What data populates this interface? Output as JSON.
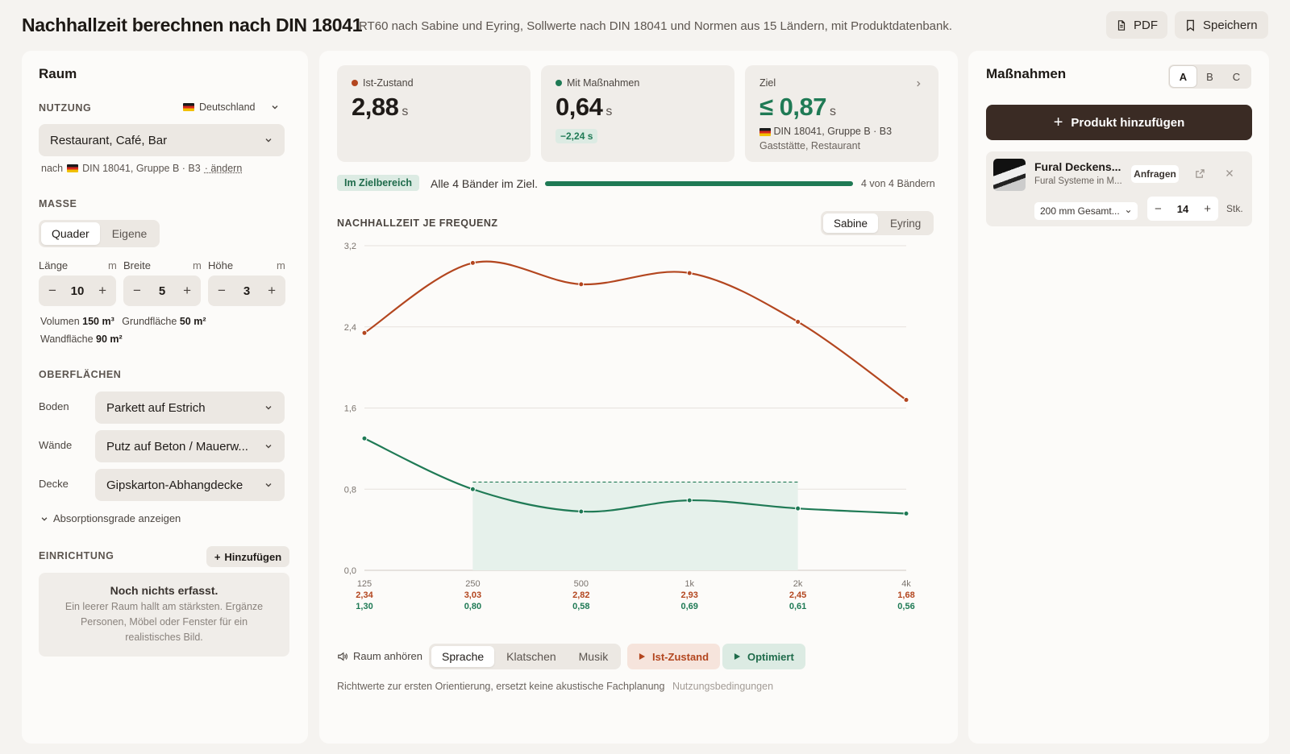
{
  "header": {
    "title": "Nachhallzeit berechnen nach DIN 18041",
    "subtitle": "RT60 nach Sabine und Eyring, Sollwerte nach DIN 18041 und Normen aus 15 Ländern, mit Produktdatenbank.",
    "pdf_label": "PDF",
    "save_label": "Speichern"
  },
  "raum": {
    "title": "Raum",
    "nutzung_label": "NUTZUNG",
    "country": "Deutschland",
    "usage_value": "Restaurant, Café, Bar",
    "norm_prefix": "nach",
    "norm_text": "DIN 18041, Gruppe B · B3",
    "norm_change": "· ändern",
    "masse_label": "MASSE",
    "shape_options": [
      "Quader",
      "Eigene"
    ],
    "shape_active": "Quader",
    "dims": [
      {
        "label": "Länge",
        "unit": "m",
        "value": "10"
      },
      {
        "label": "Breite",
        "unit": "m",
        "value": "5"
      },
      {
        "label": "Höhe",
        "unit": "m",
        "value": "3"
      }
    ],
    "volumen_label": "Volumen",
    "volumen_value": "150 m³",
    "grundflaeche_label": "Grundfläche",
    "grundflaeche_value": "50 m²",
    "wandflaeche_label": "Wandfläche",
    "wandflaeche_value": "90 m²",
    "oberflaechen_label": "OBERFLÄCHEN",
    "surfaces": [
      {
        "label": "Boden",
        "value": "Parkett auf Estrich"
      },
      {
        "label": "Wände",
        "value": "Putz auf Beton / Mauerw..."
      },
      {
        "label": "Decke",
        "value": "Gipskarton-Abhangdecke"
      }
    ],
    "absorption_toggle": "Absorptionsgrade anzeigen",
    "einrichtung_label": "EINRICHTUNG",
    "add_label": "Hinzufügen",
    "empty_title": "Noch nichts erfasst.",
    "empty_text": "Ein leerer Raum hallt am stärksten. Ergänze Personen, Möbel oder Fenster für ein realistisches Bild."
  },
  "kpis": {
    "ist": {
      "label": "Ist-Zustand",
      "value": "2,88",
      "unit": "s",
      "color": "#b3461f"
    },
    "mit": {
      "label": "Mit Maßnahmen",
      "value": "0,64",
      "unit": "s",
      "delta": "−2,24 s",
      "color": "#1f7a55"
    },
    "ziel": {
      "label": "Ziel",
      "value": "≤ 0,87",
      "unit": "s",
      "norm": "DIN 18041, Gruppe B · B3",
      "norm_sub": "Gaststätte, Restaurant"
    }
  },
  "status": {
    "badge": "Im Zielbereich",
    "text": "Alle 4 Bänder im Ziel.",
    "progress": 1.0,
    "count_text": "4 von 4 Bändern"
  },
  "chart_title": "NACHHALLZEIT JE FREQUENZ",
  "method_options": [
    "Sabine",
    "Eyring"
  ],
  "method_active": "Sabine",
  "chart_data": {
    "type": "line",
    "categories": [
      "125",
      "250",
      "500",
      "1k",
      "2k",
      "4k"
    ],
    "series": [
      {
        "key": "ist",
        "values": [
          2.34,
          3.03,
          2.82,
          2.93,
          2.45,
          1.68
        ],
        "color": "#b3461f"
      },
      {
        "key": "mit",
        "values": [
          1.3,
          0.8,
          0.58,
          0.69,
          0.61,
          0.56
        ],
        "color": "#1f7a55"
      }
    ],
    "value_labels": {
      "ist": [
        "2,34",
        "3,03",
        "2,82",
        "2,93",
        "2,45",
        "1,68"
      ],
      "mit": [
        "1,30",
        "0,80",
        "0,58",
        "0,69",
        "0,61",
        "0,56"
      ]
    },
    "target": {
      "upper": 0.87,
      "from": "250",
      "to": "2k"
    },
    "yticks": [
      "0,0",
      "0,8",
      "1,6",
      "2,4",
      "3,2"
    ],
    "ytick_values": [
      0,
      0.8,
      1.6,
      2.4,
      3.2
    ],
    "ylim": [
      0,
      3.2
    ],
    "grid": true
  },
  "listen": {
    "label": "Raum anhören",
    "options": [
      "Sprache",
      "Klatschen",
      "Musik"
    ],
    "active": "Sprache",
    "play_ist": "Ist-Zustand",
    "play_opt": "Optimiert"
  },
  "disclaimer": "Richtwerte zur ersten Orientierung, ersetzt keine akustische Fachplanung",
  "terms_link": "Nutzungsbedingungen",
  "massnahmen": {
    "title": "Maßnahmen",
    "variants": [
      "A",
      "B",
      "C"
    ],
    "active_variant": "A",
    "add_product": "Produkt hinzufügen",
    "product": {
      "name": "Fural Deckens...",
      "vendor": "Fural Systeme in M...",
      "request": "Anfragen",
      "thickness": "200 mm Gesamt...",
      "qty": "14",
      "unit": "Stk."
    }
  }
}
